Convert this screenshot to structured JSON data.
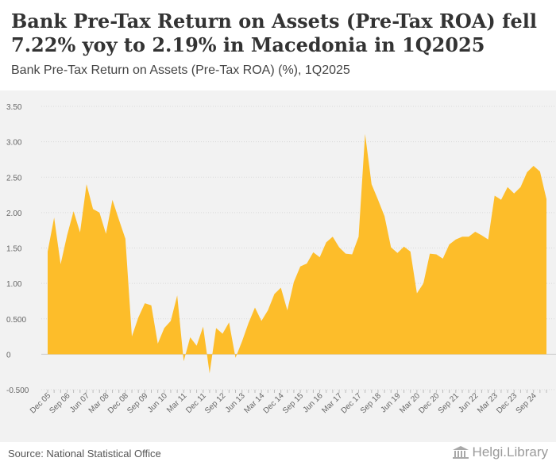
{
  "header": {
    "title": "Bank Pre-Tax Return on Assets (Pre-Tax ROA) fell 7.22% yoy to 2.19% in Macedonia in 1Q2025",
    "subtitle": "Bank Pre-Tax Return on Assets (Pre-Tax ROA) (%), 1Q2025"
  },
  "footer": {
    "source": "Source: National Statistical Office",
    "logo_text_a": "Helgi",
    "logo_text_b": "Library"
  },
  "colors": {
    "area_fill": "#FDBD2A",
    "grid": "#d9d9d9",
    "zero_line": "#cccccc",
    "axis_text": "#666666"
  },
  "chart_data": {
    "type": "area",
    "title": "Bank Pre-Tax Return on Assets (Pre-Tax ROA) (%), 1Q2025",
    "xlabel": "",
    "ylabel": "",
    "ylim": [
      -0.5,
      3.5
    ],
    "yticks": [
      3.5,
      3.0,
      2.5,
      2.0,
      1.5,
      1.0,
      0.5,
      0,
      -0.5
    ],
    "ytick_labels": [
      "3.50",
      "3.00",
      "2.50",
      "2.00",
      "1.50",
      "1.00",
      "0.500",
      "0",
      "-0.500"
    ],
    "grid": true,
    "x_tick_labels": [
      "Dec 05",
      "Sep 06",
      "Jun 07",
      "Mar 08",
      "Dec 08",
      "Sep 09",
      "Jun 10",
      "Mar 11",
      "Dec 11",
      "Sep 12",
      "Jun 13",
      "Mar 14",
      "Dec 14",
      "Sep 15",
      "Jun 16",
      "Mar 17",
      "Dec 17",
      "Sep 18",
      "Jun 19",
      "Mar 20",
      "Dec 20",
      "Sep 21",
      "Jun 22",
      "Mar 23",
      "Dec 23",
      "Sep 24"
    ],
    "x_tick_label_every": 3,
    "series": [
      {
        "name": "Pre-Tax ROA (%)",
        "values": [
          1.45,
          1.93,
          1.27,
          1.68,
          2.02,
          1.72,
          2.4,
          2.05,
          2.0,
          1.7,
          2.18,
          1.9,
          1.63,
          0.25,
          0.52,
          0.72,
          0.69,
          0.15,
          0.37,
          0.47,
          0.83,
          -0.1,
          0.24,
          0.12,
          0.39,
          -0.27,
          0.37,
          0.29,
          0.45,
          -0.05,
          0.18,
          0.44,
          0.66,
          0.47,
          0.62,
          0.85,
          0.94,
          0.62,
          1.02,
          1.24,
          1.28,
          1.44,
          1.37,
          1.58,
          1.66,
          1.51,
          1.42,
          1.41,
          1.66,
          3.11,
          2.4,
          2.18,
          1.95,
          1.51,
          1.43,
          1.52,
          1.45,
          0.86,
          1.0,
          1.42,
          1.41,
          1.35,
          1.55,
          1.62,
          1.66,
          1.66,
          1.73,
          1.68,
          1.62,
          2.24,
          2.18,
          2.36,
          2.27,
          2.36,
          2.57,
          2.66,
          2.58,
          2.19
        ]
      }
    ]
  }
}
